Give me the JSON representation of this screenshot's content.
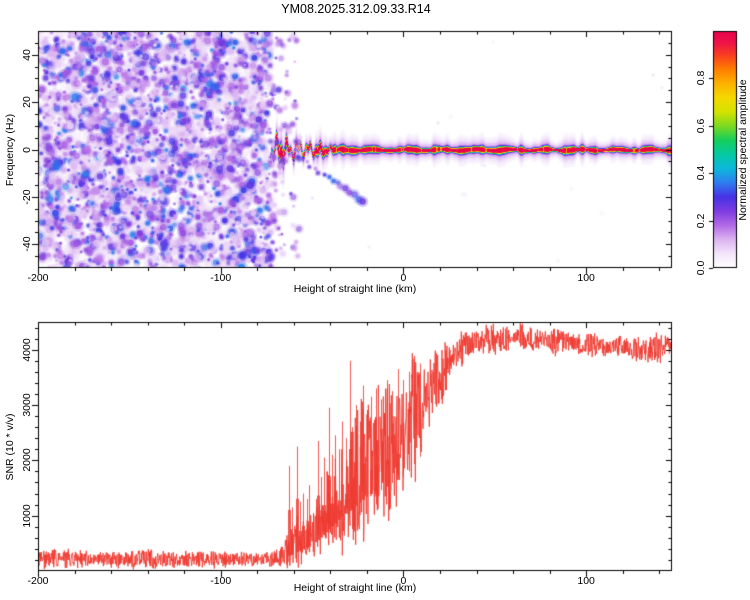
{
  "figure": {
    "title": "YM08.2025.312.09.33.R14"
  },
  "chart_data": {
    "spectrogram": {
      "type": "heatmap",
      "title": "YM08.2025.312.09.33.R14",
      "xlabel": "Height of straight line (km)",
      "ylabel": "Frequency (Hz)",
      "xlim": [
        -200,
        147
      ],
      "ylim": [
        -50,
        50
      ],
      "xticks": [
        -200,
        -100,
        0,
        100
      ],
      "xticklabels": [
        "-200",
        "-100",
        "0",
        "100"
      ],
      "xtick_minor_step": 20,
      "yticks": [
        -40,
        -20,
        0,
        20,
        40
      ],
      "yticklabels": [
        "-40",
        "-20",
        "0",
        "20",
        "40"
      ],
      "ytick_minor_step": 5,
      "noise_region": {
        "x_range_km": [
          -200,
          -73
        ],
        "amplitude_range": [
          0,
          0.35
        ],
        "texture": "dense random speckle"
      },
      "signal_trace": {
        "x_range_km": [
          -73,
          147
        ],
        "center_freq_hz": 0,
        "core_amplitude": 1.0,
        "wiggle_range_km": [
          -73,
          -34
        ],
        "wiggle_amplitude_hz": 5
      },
      "diagonal_streak": {
        "from_km_hz": [
          -58,
          -3
        ],
        "to_km_hz": [
          -22,
          -22
        ],
        "amplitude": 0.25
      },
      "colorbar": {
        "label": "Normalized spectral amplitude",
        "range": [
          0,
          1
        ],
        "ticks": [
          0,
          0.2,
          0.4,
          0.6,
          0.8
        ],
        "ticklabels": [
          "0.0",
          "0.2",
          "0.4",
          "0.6",
          "0.8"
        ],
        "stops": [
          [
            0,
            "#ffffff"
          ],
          [
            0.06,
            "#f3e6fa"
          ],
          [
            0.12,
            "#dcb4f2"
          ],
          [
            0.18,
            "#b36ae6"
          ],
          [
            0.24,
            "#7e3ce0"
          ],
          [
            0.3,
            "#4633e6"
          ],
          [
            0.36,
            "#2e7df0"
          ],
          [
            0.42,
            "#0cb8dc"
          ],
          [
            0.48,
            "#06c9a2"
          ],
          [
            0.54,
            "#16cf5a"
          ],
          [
            0.6,
            "#7ed920"
          ],
          [
            0.66,
            "#d6e300"
          ],
          [
            0.72,
            "#f5d800"
          ],
          [
            0.78,
            "#fdb000"
          ],
          [
            0.84,
            "#fd7d00"
          ],
          [
            0.9,
            "#f93c22"
          ],
          [
            0.95,
            "#ef1448"
          ],
          [
            1,
            "#e8024d"
          ]
        ]
      }
    },
    "snr": {
      "type": "line",
      "series_color": "#ee3a30",
      "xlabel": "Height of straight line (km)",
      "ylabel": "SNR (10 * v/v)",
      "xlim": [
        -200,
        147
      ],
      "ylim": [
        0,
        4500
      ],
      "xticks": [
        -200,
        -100,
        0,
        100
      ],
      "xticklabels": [
        "-200",
        "-100",
        "0",
        "100"
      ],
      "xtick_minor_step": 20,
      "yticks": [
        1000,
        2000,
        3000,
        4000
      ],
      "yticklabels": [
        "1000",
        "2000",
        "3000",
        "4000"
      ],
      "ytick_minor_step": 200,
      "envelope_keypoints_km_mean_halfrange": [
        [
          -200,
          215,
          155
        ],
        [
          -72,
          215,
          155
        ],
        [
          -67,
          260,
          200
        ],
        [
          -63,
          380,
          300
        ],
        [
          -59,
          480,
          380
        ],
        [
          -55,
          560,
          430
        ],
        [
          -51,
          640,
          480
        ],
        [
          -47,
          780,
          560
        ],
        [
          -43,
          950,
          700
        ],
        [
          -39,
          1150,
          850
        ],
        [
          -35,
          1350,
          1000
        ],
        [
          -31,
          1500,
          1100
        ],
        [
          -27,
          1650,
          1150
        ],
        [
          -23,
          1800,
          1150
        ],
        [
          -19,
          1950,
          1150
        ],
        [
          -15,
          2050,
          1200
        ],
        [
          -11,
          2100,
          1200
        ],
        [
          -7,
          2250,
          1150
        ],
        [
          -3,
          2350,
          1100
        ],
        [
          1,
          2450,
          1050
        ],
        [
          5,
          2700,
          1000
        ],
        [
          9,
          2950,
          900
        ],
        [
          13,
          3200,
          750
        ],
        [
          17,
          3400,
          620
        ],
        [
          21,
          3600,
          520
        ],
        [
          25,
          3780,
          430
        ],
        [
          29,
          3950,
          340
        ],
        [
          34,
          4080,
          270
        ],
        [
          40,
          4150,
          230
        ],
        [
          50,
          4180,
          220
        ],
        [
          62,
          4220,
          200
        ],
        [
          75,
          4190,
          210
        ],
        [
          88,
          4140,
          210
        ],
        [
          100,
          4100,
          215
        ],
        [
          112,
          4070,
          225
        ],
        [
          124,
          4040,
          235
        ],
        [
          133,
          3980,
          245
        ],
        [
          141,
          4030,
          225
        ],
        [
          147,
          4060,
          205
        ]
      ],
      "spikes_km_peak": [
        [
          -62.5,
          1900
        ],
        [
          -61,
          1150
        ],
        [
          -58.5,
          2250
        ],
        [
          -56.5,
          1250
        ],
        [
          -55,
          1400
        ],
        [
          -53,
          1300
        ],
        [
          -51.5,
          1550
        ],
        [
          -49.5,
          1050
        ],
        [
          -48,
          1300
        ],
        [
          -46.5,
          2350
        ],
        [
          -45,
          1700
        ],
        [
          -43.5,
          2050
        ],
        [
          -42,
          1800
        ],
        [
          -40.5,
          2950
        ],
        [
          -39,
          2100
        ],
        [
          -37.5,
          2450
        ],
        [
          -35.5,
          2200
        ],
        [
          -33.5,
          2700
        ],
        [
          -31.5,
          2400
        ],
        [
          -29.5,
          3800
        ],
        [
          -28,
          2600
        ],
        [
          -26,
          3000
        ],
        [
          -24,
          2700
        ],
        [
          -22,
          3350
        ],
        [
          -20,
          2900
        ],
        [
          -17.5,
          3150
        ],
        [
          -15,
          3300
        ],
        [
          -12,
          3100
        ],
        [
          -9,
          3450
        ],
        [
          -6,
          3250
        ],
        [
          -3,
          3650
        ],
        [
          0,
          3450
        ],
        [
          3,
          3600
        ],
        [
          6,
          3700
        ],
        [
          9,
          3750
        ]
      ]
    }
  }
}
